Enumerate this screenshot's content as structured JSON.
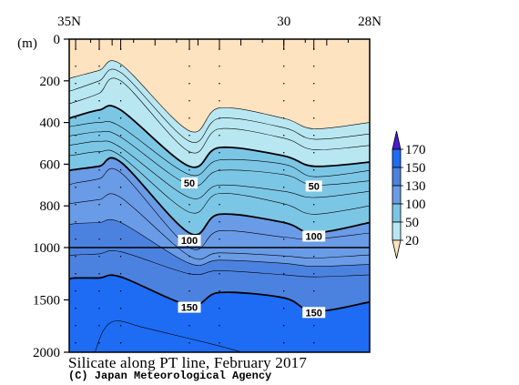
{
  "chart_data": {
    "type": "heatmap",
    "title": "Silicate along PT line, February 2017",
    "credit": "(C) Japan Meteorological Agency",
    "ylabel": "(m)",
    "x_axis": {
      "range_deg_N": [
        35,
        28
      ],
      "ticks": [
        {
          "value": 35,
          "label": "35N"
        },
        {
          "value": 30,
          "label": "30"
        },
        {
          "value": 28,
          "label": "28N"
        }
      ]
    },
    "y_axis": {
      "range_m": [
        0,
        2000
      ],
      "break_at_m": 1000,
      "ticks": [
        {
          "value": 0,
          "label": "0"
        },
        {
          "value": 200,
          "label": "200"
        },
        {
          "value": 400,
          "label": "400"
        },
        {
          "value": 600,
          "label": "600"
        },
        {
          "value": 800,
          "label": "800"
        },
        {
          "value": 1000,
          "label": "1000"
        },
        {
          "value": 1500,
          "label": "1500"
        },
        {
          "value": 2000,
          "label": "2000"
        }
      ]
    },
    "station_latitudes": [
      34.85,
      34.3,
      33.8,
      32.2,
      31.5,
      30.0,
      29.3
    ],
    "colorbar": {
      "labels": [
        "170",
        "150",
        "130",
        "100",
        "50",
        "20"
      ],
      "bands": [
        {
          "range": "<20",
          "color": "#FDE3C0"
        },
        {
          "range": "20-50",
          "color": "#B8E7F2"
        },
        {
          "range": "50-100",
          "color": "#7CC6E5"
        },
        {
          "range": "100-130",
          "color": "#6A9BE6"
        },
        {
          "range": "130-150",
          "color": "#4C82DF"
        },
        {
          "range": "150-170",
          "color": "#1E6CF4"
        },
        {
          "range": ">170",
          "color": "#4C1BD2"
        }
      ]
    },
    "contour_labels": [
      {
        "text": "50",
        "lat": 32.2,
        "depth": 690
      },
      {
        "text": "50",
        "lat": 29.3,
        "depth": 705
      },
      {
        "text": "100",
        "lat": 32.2,
        "depth": 965
      },
      {
        "text": "100",
        "lat": 29.3,
        "depth": 945
      },
      {
        "text": "150",
        "lat": 32.2,
        "depth": 1570
      },
      {
        "text": "150",
        "lat": 29.3,
        "depth": 1620
      }
    ],
    "fields": {
      "lats": [
        35.0,
        34.85,
        34.3,
        33.8,
        32.2,
        31.5,
        30.0,
        29.3,
        28.0
      ],
      "boundaries": [
        {
          "value": 20,
          "color": "#B8E7F2",
          "depth": [
            190,
            180,
            150,
            120,
            440,
            330,
            380,
            430,
            400
          ]
        },
        {
          "value": 30,
          "depth": [
            250,
            240,
            200,
            160,
            490,
            380,
            425,
            480,
            455
          ]
        },
        {
          "value": 40,
          "depth": [
            310,
            300,
            260,
            200,
            540,
            430,
            475,
            530,
            510
          ]
        },
        {
          "value": 50,
          "color": "#7CC6E5",
          "bold": true,
          "depth": [
            380,
            370,
            340,
            340,
            610,
            520,
            560,
            610,
            590
          ]
        },
        {
          "value": 60,
          "depth": [
            420,
            415,
            400,
            420,
            650,
            580,
            600,
            660,
            630
          ]
        },
        {
          "value": 70,
          "depth": [
            465,
            460,
            445,
            470,
            700,
            630,
            650,
            700,
            680
          ]
        },
        {
          "value": 80,
          "depth": [
            510,
            505,
            490,
            520,
            760,
            700,
            730,
            760,
            730
          ]
        },
        {
          "value": 90,
          "depth": [
            560,
            555,
            540,
            560,
            830,
            740,
            790,
            840,
            800
          ]
        },
        {
          "value": 100,
          "color": "#6A9BE6",
          "bold": true,
          "depth": [
            630,
            625,
            610,
            590,
            930,
            840,
            880,
            930,
            880
          ]
        },
        {
          "value": 110,
          "depth": [
            700,
            690,
            670,
            640,
            1000,
            920,
            950,
            960,
            930
          ]
        },
        {
          "value": 120,
          "depth": [
            790,
            785,
            770,
            760,
            1080,
            1050,
            1080,
            1100,
            1070
          ]
        },
        {
          "value": 130,
          "color": "#4C82DF",
          "depth": [
            890,
            885,
            880,
            880,
            1150,
            1120,
            1150,
            1180,
            1160
          ]
        },
        {
          "value": 140,
          "depth": [
            1080,
            1070,
            1060,
            1040,
            1250,
            1220,
            1260,
            1280,
            1260
          ]
        },
        {
          "value": 150,
          "color": "#1E6CF4",
          "bold": true,
          "depth": [
            1300,
            1290,
            1290,
            1280,
            1550,
            1430,
            1480,
            1610,
            1520
          ]
        }
      ],
      "deep_contour": [
        [
          34.4,
          2000
        ],
        [
          34.2,
          1790
        ],
        [
          33.9,
          1700
        ],
        [
          33.3,
          1760
        ],
        [
          32.6,
          1830
        ],
        [
          31.8,
          1910
        ],
        [
          31.1,
          1985
        ],
        [
          31.0,
          2000
        ]
      ]
    }
  }
}
